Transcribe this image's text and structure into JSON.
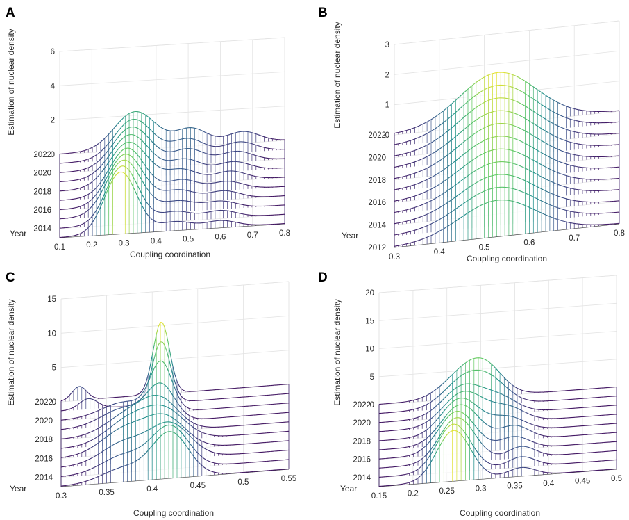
{
  "chart_data": [
    {
      "type": "3d-surface",
      "panel": "A",
      "title": "",
      "xlabel": "Coupling coordination",
      "ylabel": "Year",
      "zlabel": "Estimation of nuclear density",
      "xticks": [
        "0.1",
        "0.2",
        "0.3",
        "0.4",
        "0.5",
        "0.6",
        "0.7",
        "0.8"
      ],
      "yticks": [
        "2014",
        "2016",
        "2018",
        "2020",
        "2022"
      ],
      "zticks": [
        "0",
        "2",
        "4",
        "6"
      ],
      "xlim": [
        0.1,
        0.8
      ],
      "ylim": [
        2013,
        2022
      ],
      "zlim": [
        0,
        6
      ],
      "years": [
        2013,
        2014,
        2015,
        2016,
        2017,
        2018,
        2019,
        2020,
        2021,
        2022
      ],
      "series": [
        {
          "name": "2013",
          "peaks": [
            [
              0.29,
              3.6,
              0.05
            ],
            [
              0.46,
              0.5,
              0.05
            ],
            [
              0.6,
              0.4,
              0.05
            ]
          ]
        },
        {
          "name": "2014",
          "peaks": [
            [
              0.295,
              3.4,
              0.05
            ],
            [
              0.46,
              0.55,
              0.05
            ],
            [
              0.6,
              0.45,
              0.05
            ]
          ]
        },
        {
          "name": "2015",
          "peaks": [
            [
              0.3,
              3.2,
              0.055
            ],
            [
              0.47,
              0.6,
              0.05
            ],
            [
              0.6,
              0.45,
              0.05
            ]
          ]
        },
        {
          "name": "2016",
          "peaks": [
            [
              0.305,
              3.0,
              0.055
            ],
            [
              0.47,
              0.7,
              0.05
            ],
            [
              0.61,
              0.5,
              0.05
            ]
          ]
        },
        {
          "name": "2017",
          "peaks": [
            [
              0.31,
              2.8,
              0.055
            ],
            [
              0.48,
              0.75,
              0.05
            ],
            [
              0.62,
              0.5,
              0.05
            ]
          ]
        },
        {
          "name": "2018",
          "peaks": [
            [
              0.315,
              2.6,
              0.06
            ],
            [
              0.48,
              0.8,
              0.05
            ],
            [
              0.63,
              0.55,
              0.05
            ]
          ]
        },
        {
          "name": "2019",
          "peaks": [
            [
              0.32,
              2.5,
              0.06
            ],
            [
              0.49,
              0.85,
              0.05
            ],
            [
              0.64,
              0.55,
              0.05
            ]
          ]
        },
        {
          "name": "2020",
          "peaks": [
            [
              0.325,
              2.4,
              0.06
            ],
            [
              0.5,
              0.9,
              0.05
            ],
            [
              0.65,
              0.6,
              0.05
            ]
          ]
        },
        {
          "name": "2021",
          "peaks": [
            [
              0.33,
              2.3,
              0.06
            ],
            [
              0.5,
              0.95,
              0.05
            ],
            [
              0.66,
              0.6,
              0.05
            ]
          ]
        },
        {
          "name": "2022",
          "peaks": [
            [
              0.335,
              2.2,
              0.065
            ],
            [
              0.51,
              1.0,
              0.05
            ],
            [
              0.67,
              0.65,
              0.05
            ]
          ]
        }
      ]
    },
    {
      "type": "3d-surface",
      "panel": "B",
      "title": "",
      "xlabel": "Coupling coordination",
      "ylabel": "Year",
      "zlabel": "Estimation of nuclear density",
      "xticks": [
        "0.3",
        "0.4",
        "0.5",
        "0.6",
        "0.7",
        "0.8"
      ],
      "yticks": [
        "2012",
        "2014",
        "2016",
        "2018",
        "2020",
        "2022"
      ],
      "zticks": [
        "0",
        "1",
        "2",
        "3"
      ],
      "xlim": [
        0.3,
        0.8
      ],
      "ylim": [
        2012,
        2022
      ],
      "zlim": [
        0,
        3
      ],
      "years": [
        2012,
        2013,
        2014,
        2015,
        2016,
        2017,
        2018,
        2019,
        2020,
        2021,
        2022
      ],
      "series": [
        {
          "name": "2012",
          "peaks": [
            [
              0.53,
              1.2,
              0.085
            ]
          ]
        },
        {
          "name": "2013",
          "peaks": [
            [
              0.53,
              1.25,
              0.085
            ]
          ]
        },
        {
          "name": "2014",
          "peaks": [
            [
              0.53,
              1.3,
              0.085
            ]
          ]
        },
        {
          "name": "2015",
          "peaks": [
            [
              0.53,
              1.35,
              0.085
            ]
          ]
        },
        {
          "name": "2016",
          "peaks": [
            [
              0.53,
              1.4,
              0.085
            ]
          ]
        },
        {
          "name": "2017",
          "peaks": [
            [
              0.53,
              1.45,
              0.085
            ]
          ]
        },
        {
          "name": "2018",
          "peaks": [
            [
              0.53,
              1.5,
              0.085
            ]
          ]
        },
        {
          "name": "2019",
          "peaks": [
            [
              0.53,
              1.55,
              0.085
            ]
          ]
        },
        {
          "name": "2020",
          "peaks": [
            [
              0.53,
              1.6,
              0.085
            ]
          ]
        },
        {
          "name": "2021",
          "peaks": [
            [
              0.53,
              1.65,
              0.085
            ]
          ]
        },
        {
          "name": "2022",
          "peaks": [
            [
              0.53,
              1.7,
              0.085
            ]
          ]
        }
      ]
    },
    {
      "type": "3d-surface",
      "panel": "C",
      "title": "",
      "xlabel": "Coupling coordination",
      "ylabel": "Year",
      "zlabel": "Estimation of nuclear density",
      "xticks": [
        "0.3",
        "0.35",
        "0.4",
        "0.45",
        "0.5",
        "0.55"
      ],
      "yticks": [
        "2014",
        "2016",
        "2018",
        "2020",
        "2022"
      ],
      "zticks": [
        "0",
        "5",
        "10",
        "15"
      ],
      "xlim": [
        0.3,
        0.55
      ],
      "ylim": [
        2013,
        2022
      ],
      "zlim": [
        0,
        15
      ],
      "years": [
        2013,
        2014,
        2015,
        2016,
        2017,
        2018,
        2019,
        2020,
        2021,
        2022
      ],
      "series": [
        {
          "name": "2013",
          "peaks": [
            [
              0.42,
              6.5,
              0.02
            ],
            [
              0.37,
              2.0,
              0.025
            ]
          ]
        },
        {
          "name": "2014",
          "peaks": [
            [
              0.42,
              6.0,
              0.02
            ],
            [
              0.37,
              2.5,
              0.025
            ]
          ]
        },
        {
          "name": "2015",
          "peaks": [
            [
              0.42,
              5.0,
              0.022
            ],
            [
              0.37,
              3.0,
              0.025
            ]
          ]
        },
        {
          "name": "2016",
          "peaks": [
            [
              0.415,
              4.5,
              0.022
            ],
            [
              0.37,
              3.5,
              0.025
            ]
          ]
        },
        {
          "name": "2017",
          "peaks": [
            [
              0.415,
              4.0,
              0.022
            ],
            [
              0.375,
              3.5,
              0.025
            ]
          ]
        },
        {
          "name": "2018",
          "peaks": [
            [
              0.41,
              4.0,
              0.02
            ],
            [
              0.375,
              3.0,
              0.025
            ]
          ]
        },
        {
          "name": "2019",
          "peaks": [
            [
              0.41,
              5.0,
              0.015
            ],
            [
              0.37,
              2.5,
              0.025
            ]
          ]
        },
        {
          "name": "2020",
          "peaks": [
            [
              0.41,
              7.0,
              0.012
            ],
            [
              0.37,
              2.0,
              0.025
            ]
          ]
        },
        {
          "name": "2021",
          "peaks": [
            [
              0.41,
              9.0,
              0.01
            ],
            [
              0.33,
              1.5,
              0.01
            ]
          ]
        },
        {
          "name": "2022",
          "peaks": [
            [
              0.41,
              10.5,
              0.009
            ],
            [
              0.32,
              2.0,
              0.008
            ]
          ]
        }
      ]
    },
    {
      "type": "3d-surface",
      "panel": "D",
      "title": "",
      "xlabel": "Coupling coordination",
      "ylabel": "Year",
      "zlabel": "Estimation of nuclear density",
      "xticks": [
        "0.15",
        "0.2",
        "0.25",
        "0.3",
        "0.35",
        "0.4",
        "0.45",
        "0.5"
      ],
      "yticks": [
        "2014",
        "2016",
        "2018",
        "2020",
        "2022"
      ],
      "zticks": [
        "0",
        "5",
        "10",
        "15",
        "20"
      ],
      "xlim": [
        0.15,
        0.5
      ],
      "ylim": [
        2013,
        2022
      ],
      "zlim": [
        0,
        20
      ],
      "years": [
        2013,
        2014,
        2015,
        2016,
        2017,
        2018,
        2019,
        2020,
        2021,
        2022
      ],
      "series": [
        {
          "name": "2013",
          "peaks": [
            [
              0.26,
              9.0,
              0.025
            ],
            [
              0.36,
              1.5,
              0.02
            ]
          ]
        },
        {
          "name": "2014",
          "peaks": [
            [
              0.26,
              8.5,
              0.025
            ],
            [
              0.36,
              1.8,
              0.02
            ]
          ]
        },
        {
          "name": "2015",
          "peaks": [
            [
              0.265,
              8.0,
              0.026
            ],
            [
              0.36,
              2.0,
              0.02
            ]
          ]
        },
        {
          "name": "2016",
          "peaks": [
            [
              0.265,
              7.5,
              0.027
            ],
            [
              0.35,
              2.2,
              0.022
            ]
          ]
        },
        {
          "name": "2017",
          "peaks": [
            [
              0.27,
              7.0,
              0.028
            ],
            [
              0.35,
              2.5,
              0.022
            ]
          ]
        },
        {
          "name": "2018",
          "peaks": [
            [
              0.27,
              6.5,
              0.028
            ],
            [
              0.34,
              2.5,
              0.025
            ]
          ]
        },
        {
          "name": "2019",
          "peaks": [
            [
              0.275,
              6.0,
              0.03
            ],
            [
              0.34,
              2.5,
              0.025
            ]
          ]
        },
        {
          "name": "2020",
          "peaks": [
            [
              0.275,
              5.5,
              0.03
            ],
            [
              0.33,
              2.5,
              0.025
            ]
          ]
        },
        {
          "name": "2021",
          "peaks": [
            [
              0.28,
              5.5,
              0.032
            ],
            [
              0.32,
              2.5,
              0.025
            ]
          ]
        },
        {
          "name": "2022",
          "peaks": [
            [
              0.28,
              5.0,
              0.033
            ],
            [
              0.31,
              3.0,
              0.025
            ]
          ]
        }
      ]
    }
  ]
}
